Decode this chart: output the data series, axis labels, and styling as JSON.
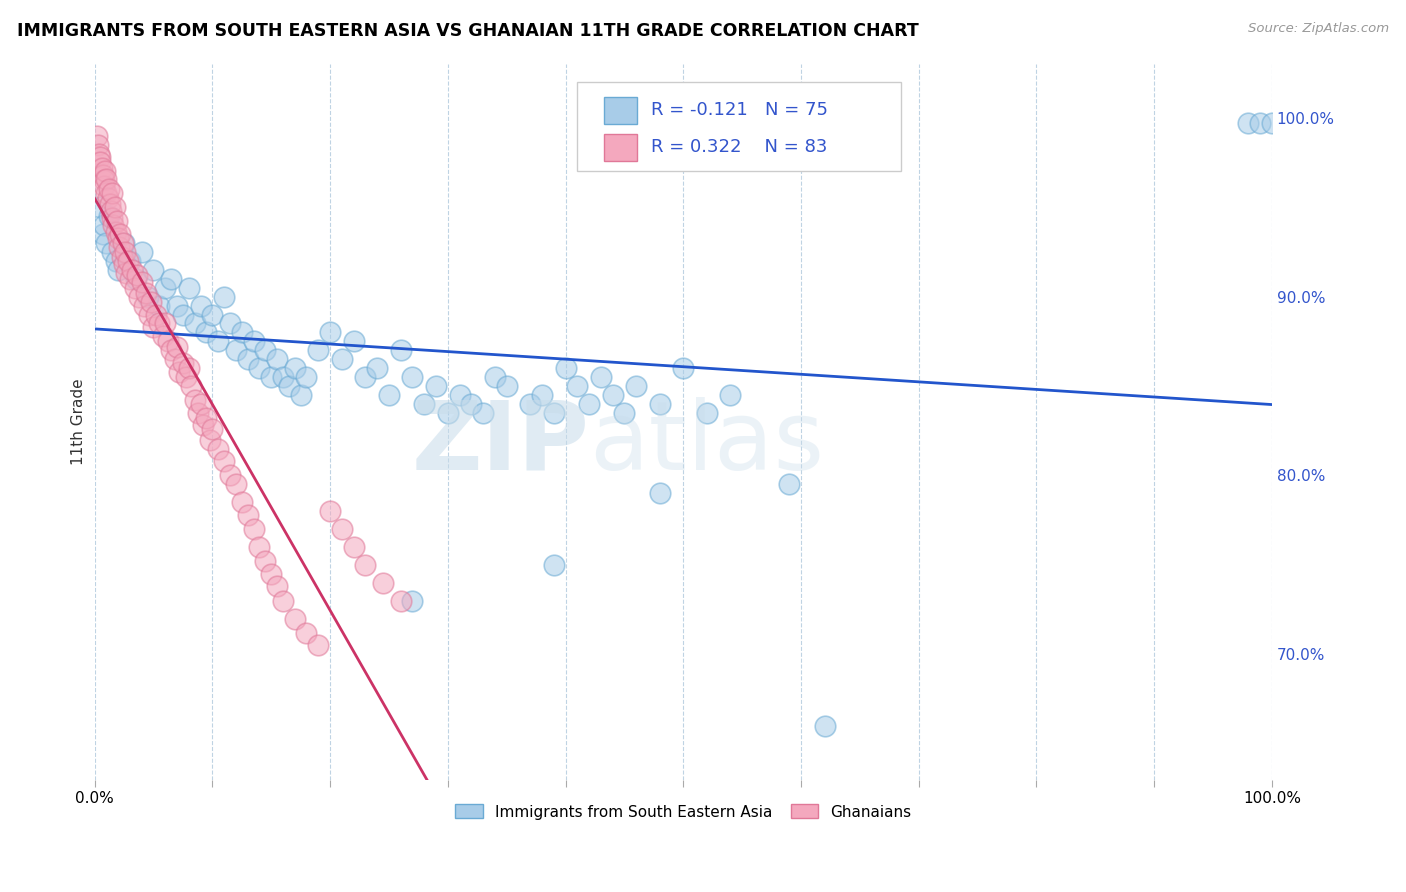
{
  "title": "IMMIGRANTS FROM SOUTH EASTERN ASIA VS GHANAIAN 11TH GRADE CORRELATION CHART",
  "source": "Source: ZipAtlas.com",
  "ylabel": "11th Grade",
  "right_yticks": [
    "100.0%",
    "90.0%",
    "80.0%",
    "70.0%"
  ],
  "right_ytick_vals": [
    1.0,
    0.9,
    0.8,
    0.7
  ],
  "legend_label1": "Immigrants from South Eastern Asia",
  "legend_label2": "Ghanaians",
  "R1": -0.121,
  "N1": 75,
  "R2": 0.322,
  "N2": 83,
  "blue_color": "#a8cce8",
  "blue_edge_color": "#6aaad4",
  "pink_color": "#f4a8be",
  "pink_edge_color": "#e07898",
  "blue_line_color": "#2255cc",
  "pink_line_color": "#cc3366",
  "ylim_low": 0.63,
  "ylim_high": 1.03,
  "xlim_low": 0.0,
  "xlim_high": 1.0,
  "watermark_zip": "ZIP",
  "watermark_atlas": "atlas",
  "watermark_color_zip": "#c8d8e8",
  "watermark_color_atlas": "#c8d8e8"
}
